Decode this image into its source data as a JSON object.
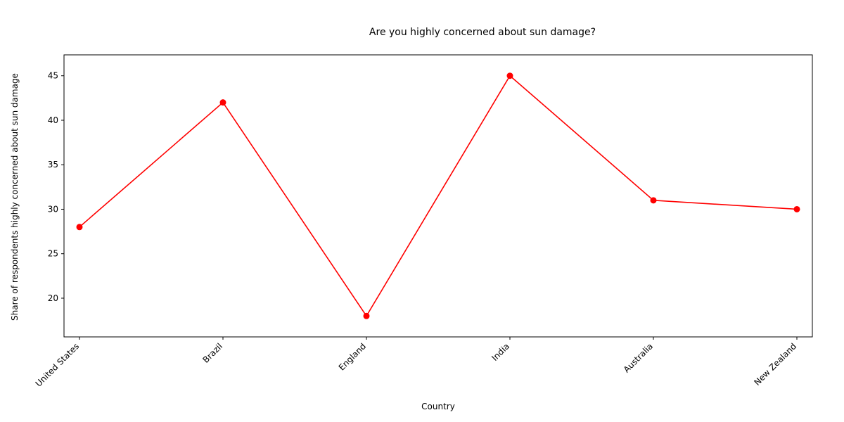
{
  "chart_data": {
    "type": "line",
    "title": "Are you highly concerned about sun damage?",
    "xlabel": "Country",
    "ylabel": "Share of respondents highly concerned about sun damage",
    "categories": [
      "United States",
      "Brazil",
      "England",
      "India",
      "Australia",
      "New Zealand"
    ],
    "series": [
      {
        "values": [
          28,
          42,
          18,
          45,
          31,
          30
        ],
        "color": "#ff0000",
        "marker": "circle"
      }
    ],
    "ylim": [
      15.65,
      47.35
    ],
    "yticks": [
      20,
      25,
      30,
      35,
      40,
      45
    ],
    "grid": false,
    "legend": "none"
  }
}
